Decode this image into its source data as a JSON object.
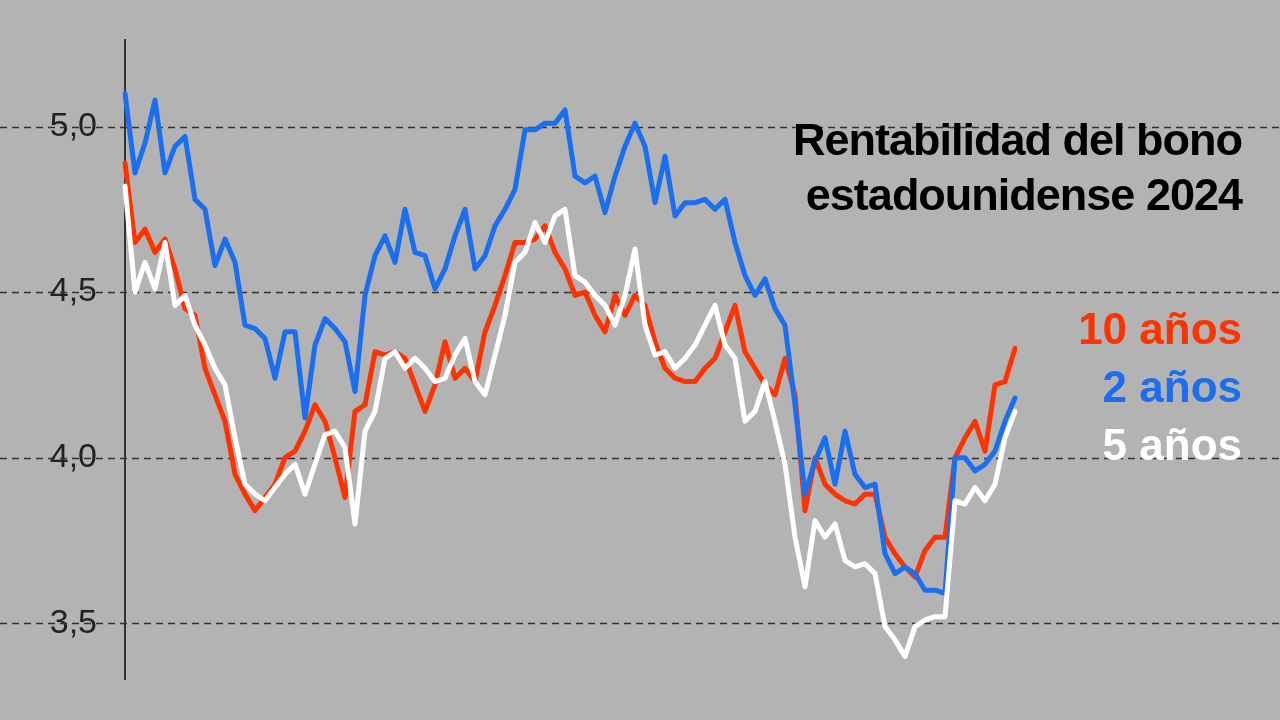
{
  "chart_data": {
    "type": "line",
    "title": "Rentabilidad del bono estadounidense 2024",
    "categories": [
      null,
      null,
      null,
      null,
      null,
      null,
      null,
      null,
      null,
      null,
      null,
      null,
      null,
      null,
      null,
      null,
      null,
      null,
      null,
      null,
      null,
      null,
      null,
      null,
      null,
      null,
      null,
      null,
      null,
      null,
      null,
      null,
      null,
      null,
      null,
      null,
      null,
      null,
      null,
      null,
      null,
      null,
      null,
      null,
      null,
      null,
      null,
      null,
      null,
      null,
      null,
      null,
      null,
      null,
      null,
      null,
      null,
      null,
      null,
      null,
      null,
      null,
      null,
      null,
      null,
      null,
      null,
      null,
      null,
      null,
      null,
      null,
      null,
      null,
      null,
      null,
      null,
      null,
      null,
      null,
      null,
      null,
      null,
      null,
      null,
      null,
      null,
      null,
      null,
      null
    ],
    "series": [
      {
        "name": "10 años",
        "color": "#ff3300",
        "values": [
          4.89,
          4.65,
          4.69,
          4.62,
          4.66,
          4.57,
          4.45,
          4.43,
          4.27,
          4.19,
          4.11,
          3.95,
          3.89,
          3.84,
          3.88,
          3.92,
          4.0,
          4.02,
          4.08,
          4.16,
          4.11,
          4.0,
          3.88,
          4.14,
          4.16,
          4.32,
          4.31,
          4.32,
          4.3,
          4.22,
          4.14,
          4.22,
          4.35,
          4.24,
          4.27,
          4.23,
          4.38,
          4.46,
          4.55,
          4.65,
          4.65,
          4.66,
          4.7,
          4.62,
          4.57,
          4.49,
          4.5,
          4.43,
          4.38,
          4.49,
          4.43,
          4.49,
          4.46,
          4.35,
          4.27,
          4.24,
          4.23,
          4.23,
          4.27,
          4.3,
          4.38,
          4.46,
          4.32,
          4.27,
          4.22,
          4.19,
          4.3,
          4.19,
          3.84,
          4.0,
          3.92,
          3.89,
          3.87,
          3.86,
          3.89,
          3.89,
          3.76,
          3.71,
          3.67,
          3.64,
          3.72,
          3.76,
          3.76,
          4.0,
          4.06,
          4.11,
          4.02,
          4.22,
          4.23,
          4.33
        ]
      },
      {
        "name": "2 años",
        "color": "#1a6ff0",
        "values": [
          5.1,
          4.86,
          4.95,
          5.08,
          4.86,
          4.94,
          4.97,
          4.78,
          4.75,
          4.58,
          4.66,
          4.59,
          4.4,
          4.39,
          4.36,
          4.24,
          4.38,
          4.38,
          4.12,
          4.34,
          4.42,
          4.39,
          4.35,
          4.2,
          4.49,
          4.61,
          4.67,
          4.59,
          4.75,
          4.62,
          4.61,
          4.51,
          4.57,
          4.67,
          4.75,
          4.57,
          4.61,
          4.7,
          4.75,
          4.81,
          4.99,
          4.99,
          5.01,
          5.01,
          5.05,
          4.85,
          4.83,
          4.85,
          4.74,
          4.85,
          4.94,
          5.01,
          4.94,
          4.77,
          4.91,
          4.73,
          4.77,
          4.77,
          4.78,
          4.75,
          4.78,
          4.65,
          4.55,
          4.49,
          4.54,
          4.45,
          4.4,
          4.16,
          3.89,
          3.99,
          4.06,
          3.92,
          4.08,
          3.95,
          3.91,
          3.92,
          3.71,
          3.65,
          3.67,
          3.65,
          3.6,
          3.6,
          3.59,
          4.0,
          4.0,
          3.96,
          3.98,
          4.02,
          4.11,
          4.18
        ]
      },
      {
        "name": "5 años",
        "color": "#ffffff",
        "values": [
          4.82,
          4.5,
          4.59,
          4.51,
          4.65,
          4.46,
          4.49,
          4.4,
          4.34,
          4.27,
          4.22,
          4.06,
          3.92,
          3.89,
          3.87,
          3.91,
          3.95,
          3.98,
          3.89,
          3.98,
          4.07,
          4.08,
          4.03,
          3.8,
          4.08,
          4.14,
          4.3,
          4.32,
          4.27,
          4.3,
          4.27,
          4.23,
          4.24,
          4.31,
          4.36,
          4.23,
          4.19,
          4.31,
          4.43,
          4.59,
          4.62,
          4.71,
          4.65,
          4.73,
          4.75,
          4.55,
          4.53,
          4.49,
          4.46,
          4.4,
          4.49,
          4.63,
          4.4,
          4.31,
          4.32,
          4.27,
          4.3,
          4.34,
          4.4,
          4.46,
          4.34,
          4.3,
          4.11,
          4.14,
          4.23,
          4.11,
          3.98,
          3.76,
          3.61,
          3.81,
          3.76,
          3.8,
          3.69,
          3.67,
          3.68,
          3.65,
          3.49,
          3.45,
          3.4,
          3.49,
          3.51,
          3.52,
          3.52,
          3.87,
          3.86,
          3.91,
          3.87,
          3.92,
          4.06,
          4.14
        ]
      }
    ],
    "ylim": [
      3.33,
      5.26
    ],
    "yticks": [
      {
        "value": 3.5,
        "label": "3,5"
      },
      {
        "value": 4,
        "label": "4,0"
      },
      {
        "value": 4.5,
        "label": "4,5"
      },
      {
        "value": 5,
        "label": "5,0"
      }
    ],
    "grid": "y",
    "legend": "right",
    "line_style": "solid",
    "tick_labels": "y"
  }
}
